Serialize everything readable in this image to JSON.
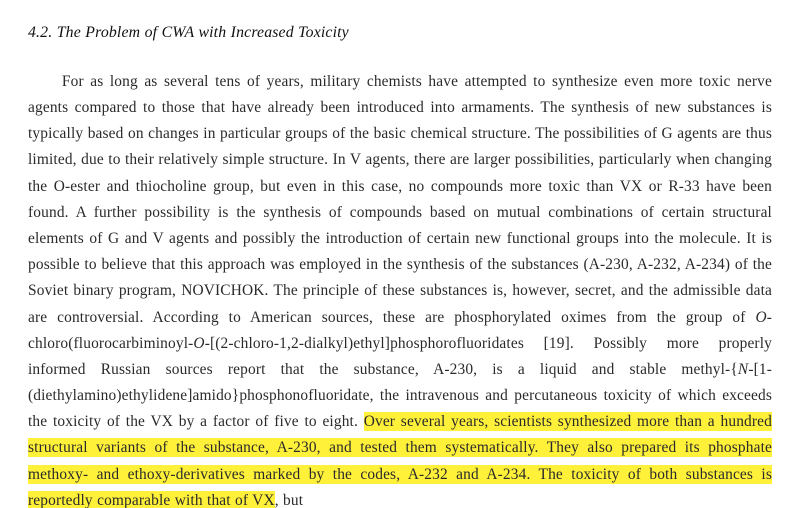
{
  "document": {
    "background_color": "#ffffff",
    "text_color": "#2a2a2a",
    "highlight_color": "#fff13a",
    "font_family": "Georgia / Times-like serif",
    "body_font_size_pt": 12,
    "line_height": 1.7,
    "text_align": "justify",
    "text_indent_em": 2.2
  },
  "section": {
    "number": "4.2.",
    "title": "The Problem of CWA with Increased Toxicity",
    "heading_font_style": "italic",
    "heading_font_size_pt": 12
  },
  "body": {
    "seg1": "For as long as several tens of years, military chemists have attempted to synthesize even more toxic nerve agents compared to those that have already been introduced into armaments. The synthesis of new substances is typically based on changes in particular groups of the basic chemical structure. The possibilities of G agents are thus limited, due to their relatively simple structure. In V agents, there are larger possibilities, particularly when changing the O-ester and thiocholine group, but even in this case, no compounds more toxic than VX or R-33 have been found. A further possibility is the synthesis of compounds based on mutual combinations of certain structural elements of G and V agents and possibly the introduction of certain new functional groups into the molecule. It is possible to believe that this approach was employed in the synthesis of the substances (A-230, A-232, A-234) of the Soviet binary program, NOVICHOK. The principle of these substances is, however, secret, and the admissible data are controversial. According to American sources, these are phosphorylated oximes from the group of ",
    "seg2_italic": "O",
    "seg3": "-chloro(fluorocarbiminoyl-",
    "seg4_italic": "O",
    "seg5": "-[(2-chloro-1,2-dialkyl)ethyl]phosphorofluoridates [19]. Possibly more properly informed Russian sources report that the substance, A-230, is a liquid and stable methyl-{",
    "seg6_italic": "N",
    "seg7": "-[1-(diethylamino)ethylidene]amido}phosphonofluoridate, the intravenous and percutaneous toxicity of which exceeds the toxicity of the VX by a factor of five to eight. ",
    "hl1": "Over several years, scientists synthesized more than a hundred structural variants of the substance, A-230, and tested them systematically. They also prepared its phosphate methoxy- and ethoxy-derivatives marked by the codes, A-232 and A-234. The toxicity of both substances is reportedly comparable with that of VX",
    "seg8": ", but"
  }
}
